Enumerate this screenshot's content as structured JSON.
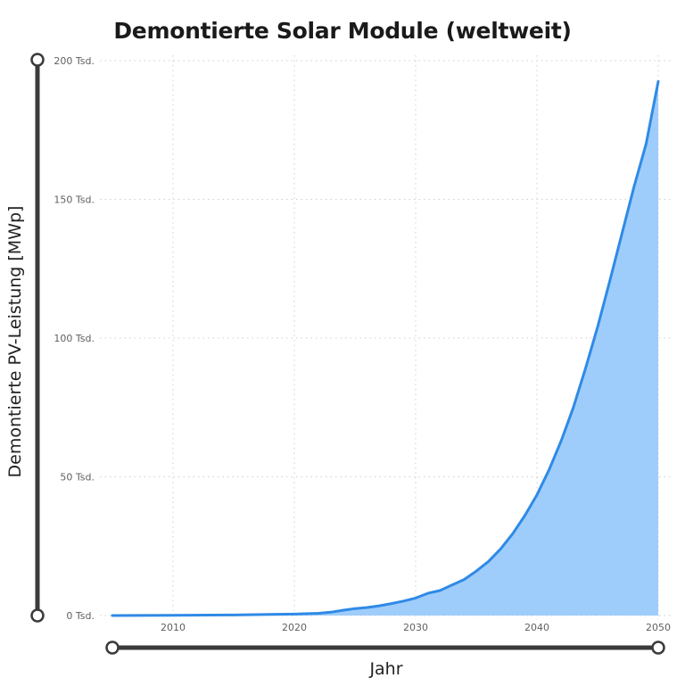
{
  "chart_data": {
    "type": "area",
    "title": "Demontierte Solar Module (weltweit)",
    "xlabel": "Jahr",
    "ylabel": "Demontierte PV-Leistung [MWp]",
    "xlim": [
      2005,
      2050
    ],
    "ylim": [
      0,
      200000
    ],
    "x_ticks": [
      "2010",
      "2020",
      "2030",
      "2040",
      "2050"
    ],
    "y_ticks": [
      "0 Tsd.",
      "50 Tsd.",
      "100 Tsd.",
      "150 Tsd.",
      "200 Tsd."
    ],
    "grid": true,
    "series": [
      {
        "x": [
          2005,
          2010,
          2015,
          2018,
          2020,
          2022,
          2023,
          2024,
          2025,
          2026,
          2027,
          2028,
          2029,
          2030,
          2031,
          2032,
          2033,
          2034,
          2035,
          2036,
          2037,
          2038,
          2039,
          2040,
          2041,
          2042,
          2043,
          2044,
          2045,
          2046,
          2047,
          2048,
          2049,
          2050
        ],
        "values": [
          0,
          100,
          200,
          400,
          500,
          800,
          1200,
          1900,
          2500,
          2900,
          3500,
          4300,
          5200,
          6300,
          8000,
          9000,
          11000,
          13000,
          16000,
          19500,
          24000,
          29500,
          36000,
          43500,
          52500,
          63000,
          75000,
          89000,
          104000,
          120500,
          137500,
          154500,
          170000,
          192500
        ],
        "color": "#2f8ae6",
        "fill": "#9fcdfb"
      }
    ]
  }
}
